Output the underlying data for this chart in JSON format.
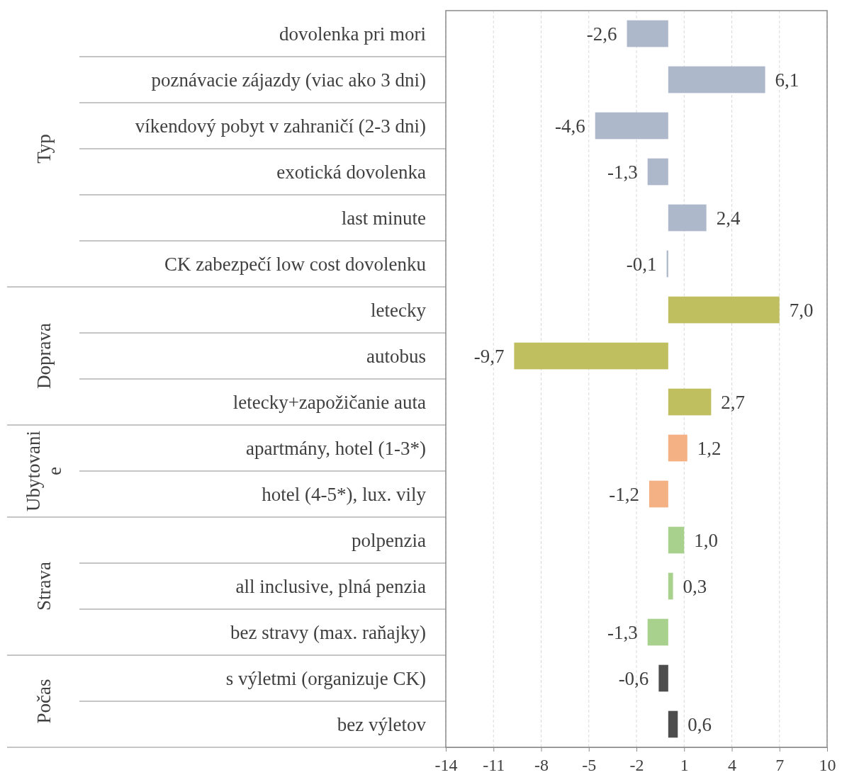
{
  "chart_data": {
    "type": "bar",
    "orientation": "horizontal",
    "categories": [
      "dovolenka pri mori",
      "poznávacie zájazdy (viac ako 3 dni)",
      "víkendový pobyt v zahraničí (2-3 dni)",
      "exotická dovolenka",
      "last minute",
      "CK zabezpečí low cost dovolenku",
      "letecky",
      "autobus",
      "letecky+zapožičanie auta",
      "apartmány, hotel (1-3*)",
      "hotel (4-5*), lux. vily",
      "polpenzia",
      "all inclusive, plná penzia",
      "bez stravy (max. raňajky)",
      "s výletmi (organizuje CK)",
      "bez výletov"
    ],
    "values": [
      -2.6,
      6.1,
      -4.6,
      -1.3,
      2.4,
      -0.1,
      7.0,
      -9.7,
      2.7,
      1.2,
      -1.2,
      1.0,
      0.3,
      -1.3,
      -0.6,
      0.6
    ],
    "value_labels": [
      "-2,6",
      "6,1",
      "-4,6",
      "-1,3",
      "2,4",
      "-0,1",
      "7,0",
      "-9,7",
      "2,7",
      "1,2",
      "-1,2",
      "1,0",
      "0,3",
      "-1,3",
      "-0,6",
      "0,6"
    ],
    "colors": [
      "#adb9ca",
      "#adb9ca",
      "#adb9ca",
      "#adb9ca",
      "#adb9ca",
      "#adb9ca",
      "#bfbf5f",
      "#bfbf5f",
      "#bfbf5f",
      "#f4b183",
      "#f4b183",
      "#a9d18e",
      "#a9d18e",
      "#a9d18e",
      "#4d4d4d",
      "#4d4d4d"
    ],
    "annotations": [
      "Typ",
      "Doprava",
      "Ubytovanie",
      "Strava",
      "Počas"
    ],
    "xlim": [
      -14,
      10
    ],
    "xticks": [
      -14,
      -11,
      -8,
      -5,
      -2,
      1,
      4,
      7,
      10
    ],
    "grid": "x"
  }
}
